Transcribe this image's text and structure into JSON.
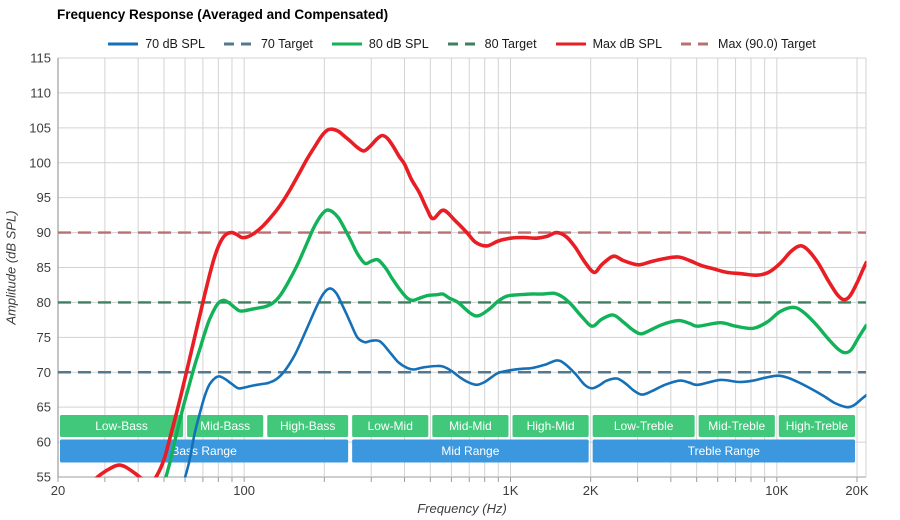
{
  "title": "Frequency Response (Averaged and Compensated)",
  "legend": [
    {
      "label": "70 dB SPL",
      "color": "#1570b8",
      "dash": false
    },
    {
      "label": "70 Target",
      "color": "#54798f",
      "dash": true
    },
    {
      "label": "80 dB SPL",
      "color": "#12b259",
      "dash": false
    },
    {
      "label": "80 Target",
      "color": "#3e7f61",
      "dash": true
    },
    {
      "label": "Max dB SPL",
      "color": "#e91e25",
      "dash": false
    },
    {
      "label": "Max (90.0) Target",
      "color": "#b97070",
      "dash": true
    }
  ],
  "chart_data": {
    "type": "line",
    "title": "Frequency Response (Averaged and Compensated)",
    "xlabel": "Frequency (Hz)",
    "ylabel": "Amplitude (dB SPL)",
    "x_scale": "log",
    "xlim": [
      20,
      21650
    ],
    "ylim": [
      55,
      115
    ],
    "y_ticks": [
      55,
      60,
      65,
      70,
      75,
      80,
      85,
      90,
      95,
      100,
      105,
      110,
      115
    ],
    "x_major_ticks": [
      {
        "f": 20,
        "label": "20"
      },
      {
        "f": 100,
        "label": "100"
      },
      {
        "f": 1000,
        "label": "1K"
      },
      {
        "f": 2000,
        "label": "2K"
      },
      {
        "f": 10000,
        "label": "10K"
      },
      {
        "f": 20000,
        "label": "20K"
      }
    ],
    "grid": true,
    "legend_position": "top",
    "targets": [
      {
        "name": "70 Target",
        "value": 70,
        "color": "#54798f"
      },
      {
        "name": "80 Target",
        "value": 80,
        "color": "#3e7f61"
      },
      {
        "name": "Max (90.0) Target",
        "value": 90,
        "color": "#b97070"
      }
    ],
    "series": [
      {
        "name": "70 dB SPL",
        "color": "#1570b8",
        "width": 2.6,
        "points": [
          [
            59,
            54
          ],
          [
            62,
            57
          ],
          [
            65,
            61
          ],
          [
            68,
            64
          ],
          [
            71,
            66.5
          ],
          [
            74,
            68.2
          ],
          [
            78,
            69.2
          ],
          [
            81,
            69.4
          ],
          [
            85,
            69.0
          ],
          [
            90,
            68.3
          ],
          [
            95,
            67.7
          ],
          [
            100,
            67.8
          ],
          [
            108,
            68.1
          ],
          [
            116,
            68.3
          ],
          [
            124,
            68.5
          ],
          [
            132,
            69.0
          ],
          [
            142,
            70.2
          ],
          [
            155,
            72.5
          ],
          [
            170,
            75.8
          ],
          [
            185,
            79.0
          ],
          [
            198,
            81.2
          ],
          [
            210,
            82.0
          ],
          [
            222,
            81.3
          ],
          [
            235,
            79.4
          ],
          [
            250,
            77.2
          ],
          [
            266,
            75.0
          ],
          [
            284,
            74.3
          ],
          [
            300,
            74.5
          ],
          [
            324,
            74.4
          ],
          [
            355,
            72.7
          ],
          [
            380,
            71.4
          ],
          [
            410,
            70.6
          ],
          [
            435,
            70.4
          ],
          [
            470,
            70.7
          ],
          [
            530,
            70.9
          ],
          [
            560,
            70.8
          ],
          [
            600,
            70.2
          ],
          [
            650,
            69.2
          ],
          [
            700,
            68.5
          ],
          [
            749,
            68.2
          ],
          [
            800,
            68.6
          ],
          [
            850,
            69.3
          ],
          [
            900,
            69.9
          ],
          [
            1000,
            70.3
          ],
          [
            1100,
            70.5
          ],
          [
            1200,
            70.6
          ],
          [
            1350,
            71.1
          ],
          [
            1495,
            71.7
          ],
          [
            1600,
            71.2
          ],
          [
            1750,
            69.8
          ],
          [
            1900,
            68.2
          ],
          [
            2025,
            67.7
          ],
          [
            2150,
            68.1
          ],
          [
            2300,
            68.8
          ],
          [
            2510,
            69.1
          ],
          [
            2700,
            68.4
          ],
          [
            2900,
            67.4
          ],
          [
            3120,
            66.8
          ],
          [
            3400,
            67.3
          ],
          [
            3800,
            68.2
          ],
          [
            4330,
            68.8
          ],
          [
            4700,
            68.5
          ],
          [
            5060,
            68.2
          ],
          [
            6130,
            68.9
          ],
          [
            7200,
            68.6
          ],
          [
            8150,
            68.8
          ],
          [
            9000,
            69.2
          ],
          [
            10100,
            69.5
          ],
          [
            11000,
            69.2
          ],
          [
            12000,
            68.6
          ],
          [
            13500,
            67.6
          ],
          [
            15000,
            66.6
          ],
          [
            16500,
            65.6
          ],
          [
            18350,
            65.0
          ],
          [
            19500,
            65.3
          ],
          [
            20700,
            66.1
          ],
          [
            21650,
            66.7
          ]
        ]
      },
      {
        "name": "80 dB SPL",
        "color": "#12b259",
        "width": 3.4,
        "points": [
          [
            50,
            54
          ],
          [
            53,
            57.5
          ],
          [
            56,
            61.5
          ],
          [
            59,
            65
          ],
          [
            62,
            68
          ],
          [
            65,
            70.8
          ],
          [
            68,
            73.2
          ],
          [
            71,
            75.5
          ],
          [
            74,
            77.5
          ],
          [
            78,
            79.3
          ],
          [
            81,
            80.1
          ],
          [
            84,
            80.3
          ],
          [
            88,
            79.9
          ],
          [
            92,
            79.3
          ],
          [
            96,
            78.8
          ],
          [
            100,
            78.8
          ],
          [
            106,
            79.0
          ],
          [
            113,
            79.2
          ],
          [
            120,
            79.4
          ],
          [
            128,
            79.9
          ],
          [
            136,
            80.9
          ],
          [
            146,
            82.8
          ],
          [
            158,
            85.3
          ],
          [
            170,
            88.0
          ],
          [
            182,
            90.6
          ],
          [
            194,
            92.4
          ],
          [
            204,
            93.2
          ],
          [
            214,
            93.0
          ],
          [
            226,
            92.1
          ],
          [
            238,
            90.6
          ],
          [
            252,
            88.8
          ],
          [
            266,
            87.0
          ],
          [
            284,
            85.6
          ],
          [
            300,
            85.9
          ],
          [
            318,
            86.1
          ],
          [
            340,
            84.9
          ],
          [
            360,
            83.4
          ],
          [
            385,
            81.8
          ],
          [
            410,
            80.6
          ],
          [
            430,
            80.3
          ],
          [
            455,
            80.6
          ],
          [
            490,
            81.0
          ],
          [
            530,
            81.1
          ],
          [
            557,
            81.2
          ],
          [
            590,
            80.6
          ],
          [
            635,
            80.0
          ],
          [
            710,
            78.4
          ],
          [
            760,
            78.1
          ],
          [
            830,
            79.0
          ],
          [
            900,
            80.2
          ],
          [
            970,
            80.9
          ],
          [
            1080,
            81.1
          ],
          [
            1200,
            81.2
          ],
          [
            1330,
            81.2
          ],
          [
            1460,
            81.3
          ],
          [
            1580,
            80.7
          ],
          [
            1700,
            79.6
          ],
          [
            1850,
            78.0
          ],
          [
            2025,
            76.6
          ],
          [
            2200,
            77.6
          ],
          [
            2430,
            78.2
          ],
          [
            2650,
            77.2
          ],
          [
            2850,
            76.2
          ],
          [
            3070,
            75.5
          ],
          [
            3300,
            75.9
          ],
          [
            3700,
            76.8
          ],
          [
            4260,
            77.4
          ],
          [
            4700,
            77.0
          ],
          [
            5060,
            76.6
          ],
          [
            6130,
            77.1
          ],
          [
            7000,
            76.6
          ],
          [
            8150,
            76.3
          ],
          [
            9200,
            77.2
          ],
          [
            10300,
            78.7
          ],
          [
            11500,
            79.3
          ],
          [
            12500,
            78.7
          ],
          [
            14000,
            76.9
          ],
          [
            15500,
            74.9
          ],
          [
            17000,
            73.3
          ],
          [
            18000,
            72.8
          ],
          [
            19000,
            73.2
          ],
          [
            20300,
            75.0
          ],
          [
            21650,
            76.7
          ]
        ]
      },
      {
        "name": "Max dB SPL",
        "color": "#e91e25",
        "width": 3.6,
        "points": [
          [
            26,
            53.8
          ],
          [
            29,
            55.4
          ],
          [
            32,
            56.4
          ],
          [
            34,
            56.7
          ],
          [
            36,
            56.4
          ],
          [
            39,
            55.5
          ],
          [
            42,
            54.6
          ],
          [
            45,
            54.4
          ],
          [
            47,
            55.2
          ],
          [
            50,
            57.5
          ],
          [
            53,
            61
          ],
          [
            56,
            64.5
          ],
          [
            59,
            68
          ],
          [
            62,
            71.5
          ],
          [
            65,
            74.8
          ],
          [
            68,
            78
          ],
          [
            71,
            81
          ],
          [
            74,
            83.8
          ],
          [
            77,
            86.2
          ],
          [
            80,
            88
          ],
          [
            83,
            89.2
          ],
          [
            86,
            89.8
          ],
          [
            90,
            90.0
          ],
          [
            94,
            89.7
          ],
          [
            98,
            89.3
          ],
          [
            103,
            89.4
          ],
          [
            110,
            90.0
          ],
          [
            118,
            91.0
          ],
          [
            126,
            92.2
          ],
          [
            136,
            93.8
          ],
          [
            148,
            96.0
          ],
          [
            160,
            98.3
          ],
          [
            172,
            100.5
          ],
          [
            184,
            102.3
          ],
          [
            196,
            103.9
          ],
          [
            206,
            104.7
          ],
          [
            215,
            104.8
          ],
          [
            226,
            104.5
          ],
          [
            238,
            103.8
          ],
          [
            252,
            103.0
          ],
          [
            266,
            102.2
          ],
          [
            281,
            101.7
          ],
          [
            296,
            102.3
          ],
          [
            315,
            103.4
          ],
          [
            330,
            103.9
          ],
          [
            345,
            103.5
          ],
          [
            362,
            102.4
          ],
          [
            382,
            100.9
          ],
          [
            400,
            99.8
          ],
          [
            425,
            97.6
          ],
          [
            455,
            95.7
          ],
          [
            485,
            93.4
          ],
          [
            512,
            92.0
          ],
          [
            560,
            93.2
          ],
          [
            620,
            91.7
          ],
          [
            686,
            90.0
          ],
          [
            740,
            88.6
          ],
          [
            815,
            88.1
          ],
          [
            900,
            88.8
          ],
          [
            1000,
            89.2
          ],
          [
            1120,
            89.3
          ],
          [
            1250,
            89.2
          ],
          [
            1380,
            89.5
          ],
          [
            1490,
            90.0
          ],
          [
            1620,
            89.4
          ],
          [
            1750,
            87.9
          ],
          [
            1900,
            85.8
          ],
          [
            2060,
            84.3
          ],
          [
            2200,
            85.4
          ],
          [
            2430,
            86.6
          ],
          [
            2650,
            86.0
          ],
          [
            2900,
            85.5
          ],
          [
            3070,
            85.4
          ],
          [
            3350,
            85.8
          ],
          [
            3700,
            86.2
          ],
          [
            4260,
            86.5
          ],
          [
            4700,
            86.0
          ],
          [
            5200,
            85.3
          ],
          [
            5800,
            84.8
          ],
          [
            6500,
            84.3
          ],
          [
            7400,
            84.1
          ],
          [
            8400,
            83.9
          ],
          [
            9300,
            84.3
          ],
          [
            10300,
            85.6
          ],
          [
            11300,
            87.3
          ],
          [
            12200,
            88.1
          ],
          [
            13000,
            87.6
          ],
          [
            14200,
            85.8
          ],
          [
            15500,
            83.3
          ],
          [
            16800,
            81.2
          ],
          [
            17800,
            80.4
          ],
          [
            18800,
            80.9
          ],
          [
            20000,
            82.8
          ],
          [
            21000,
            84.6
          ],
          [
            21650,
            85.7
          ]
        ]
      }
    ],
    "bands": {
      "sub_color": "#41c87b",
      "main_color": "#3b98de",
      "sub": [
        {
          "label": "Low-Bass",
          "from": 20,
          "to": 60
        },
        {
          "label": "Mid-Bass",
          "from": 60,
          "to": 120
        },
        {
          "label": "High-Bass",
          "from": 120,
          "to": 250
        },
        {
          "label": "Low-Mid",
          "from": 250,
          "to": 500
        },
        {
          "label": "Mid-Mid",
          "from": 500,
          "to": 1000
        },
        {
          "label": "High-Mid",
          "from": 1000,
          "to": 2000
        },
        {
          "label": "Low-Treble",
          "from": 2000,
          "to": 5000
        },
        {
          "label": "Mid-Treble",
          "from": 5000,
          "to": 10000
        },
        {
          "label": "High-Treble",
          "from": 10000,
          "to": 20000
        }
      ],
      "main": [
        {
          "label": "Bass Range",
          "from": 20,
          "to": 250
        },
        {
          "label": "Mid Range",
          "from": 250,
          "to": 2000
        },
        {
          "label": "Treble Range",
          "from": 2000,
          "to": 20000
        }
      ]
    }
  },
  "colors": {
    "grid": "#d3d3d3",
    "axis": "#9c9c9c",
    "tick_text": "#3d3d3d"
  }
}
